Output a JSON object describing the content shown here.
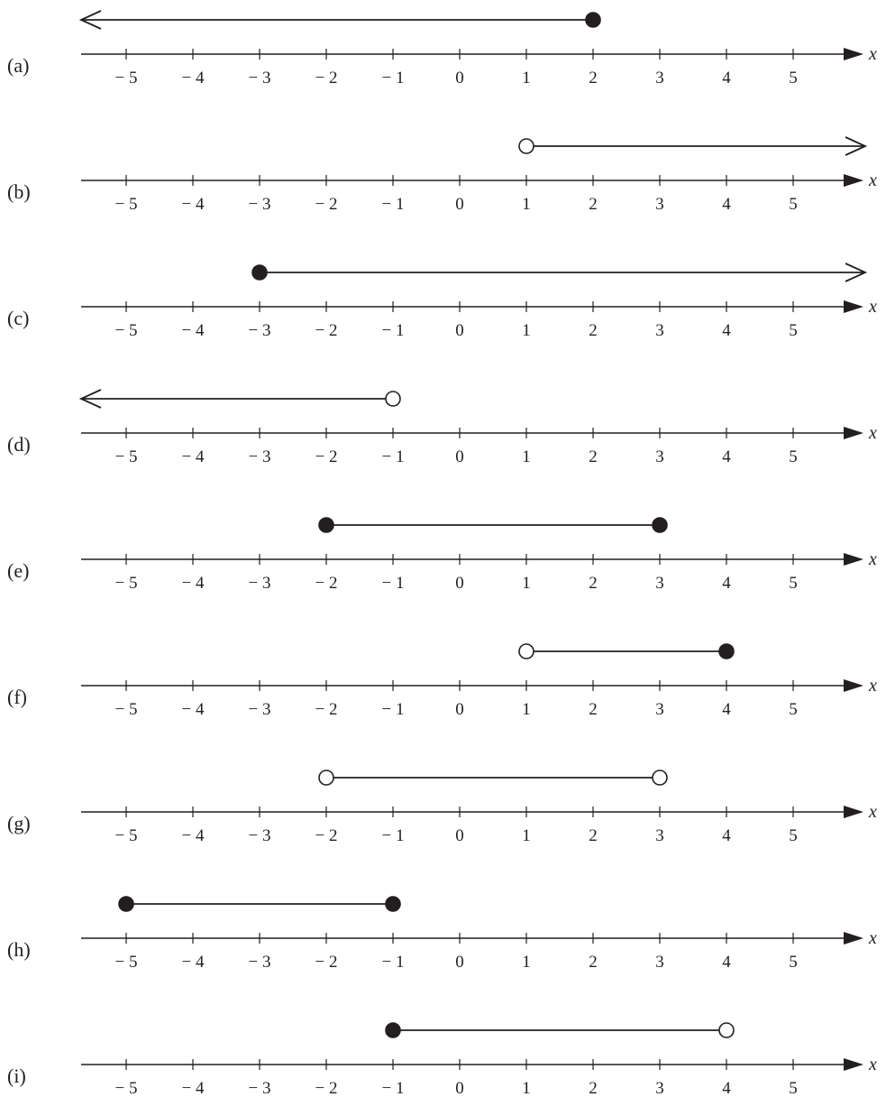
{
  "axis": {
    "variable": "x",
    "ticks": [
      -5,
      -4,
      -3,
      -2,
      -1,
      0,
      1,
      2,
      3,
      4,
      5
    ],
    "tick_labels": [
      "− 5",
      "− 4",
      "− 3",
      "− 2",
      "− 1",
      "0",
      "1",
      "2",
      "3",
      "4",
      "5"
    ]
  },
  "colors": {
    "ink": "#231f20",
    "background": "#ffffff"
  },
  "panels": [
    {
      "label": "(a)",
      "start": null,
      "end": 2,
      "start_closed": null,
      "end_closed": true,
      "extends": "left"
    },
    {
      "label": "(b)",
      "start": 1,
      "end": null,
      "start_closed": false,
      "end_closed": null,
      "extends": "right"
    },
    {
      "label": "(c)",
      "start": -3,
      "end": null,
      "start_closed": true,
      "end_closed": null,
      "extends": "right"
    },
    {
      "label": "(d)",
      "start": null,
      "end": -1,
      "start_closed": null,
      "end_closed": false,
      "extends": "left"
    },
    {
      "label": "(e)",
      "start": -2,
      "end": 3,
      "start_closed": true,
      "end_closed": true,
      "extends": "none"
    },
    {
      "label": "(f)",
      "start": 1,
      "end": 4,
      "start_closed": false,
      "end_closed": true,
      "extends": "none"
    },
    {
      "label": "(g)",
      "start": -2,
      "end": 3,
      "start_closed": false,
      "end_closed": false,
      "extends": "none"
    },
    {
      "label": "(h)",
      "start": -5,
      "end": -1,
      "start_closed": true,
      "end_closed": true,
      "extends": "none"
    },
    {
      "label": "(i)",
      "start": -1,
      "end": 4,
      "start_closed": true,
      "end_closed": false,
      "extends": "none"
    }
  ]
}
